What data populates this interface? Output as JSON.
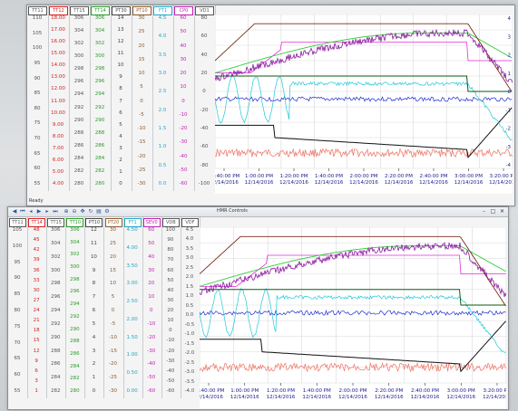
{
  "top_window": {
    "status": "Ready",
    "columns": [
      {
        "name": "TT11",
        "color": "#555555",
        "ticks": [
          "110",
          "105",
          "100",
          "95",
          "90",
          "85",
          "80",
          "75",
          "70",
          "65",
          "60",
          "55"
        ]
      },
      {
        "name": "TT12",
        "color": "#d42020",
        "ticks": [
          "18.00",
          "17.00",
          "16.00",
          "15.00",
          "14.00",
          "13.00",
          "12.00",
          "11.00",
          "10.00",
          "9.00",
          "8.00",
          "7.00",
          "6.00",
          "5.00",
          "4.00"
        ]
      },
      {
        "name": "TT15",
        "color": "#555555",
        "ticks": [
          "306",
          "304",
          "302",
          "300",
          "298",
          "296",
          "294",
          "292",
          "290",
          "288",
          "286",
          "284",
          "282",
          "280"
        ]
      },
      {
        "name": "TT14",
        "color": "#2a9a2a",
        "ticks": [
          "306",
          "304",
          "302",
          "300",
          "298",
          "296",
          "294",
          "292",
          "290",
          "288",
          "286",
          "284",
          "282",
          "280"
        ]
      },
      {
        "name": "PT30",
        "color": "#444444",
        "ticks": [
          "14",
          "13",
          "12",
          "11",
          "10",
          "9",
          "8",
          "7",
          "6",
          "5",
          "4",
          "3",
          "2",
          "1",
          "0"
        ]
      },
      {
        "name": "PT10",
        "color": "#8b5a2b",
        "ticks": [
          "30",
          "25",
          "20",
          "15",
          "10",
          "5",
          "0",
          "-5",
          "-10",
          "-15",
          "-20",
          "-25",
          "-30"
        ]
      },
      {
        "name": "FT1",
        "color": "#1fa7c7",
        "ticks": [
          "4.5",
          "4.0",
          "3.5",
          "3.0",
          "2.5",
          "2.0",
          "1.5",
          "1.0",
          "0.5",
          "0.0"
        ]
      },
      {
        "name": "CP0",
        "color": "#c21fb0",
        "ticks": [
          "60",
          "50",
          "40",
          "30",
          "20",
          "10",
          "0",
          "-10",
          "-20",
          "-30",
          "-40",
          "-50",
          "-60"
        ]
      },
      {
        "name": "VD1",
        "color": "#555555",
        "ticks": [
          "80",
          "60",
          "40",
          "20",
          "0",
          "-20",
          "-40",
          "-60",
          "-80",
          "-100"
        ]
      }
    ],
    "axis_times": [
      {
        "t": "12:40:00 PM",
        "d": "12/14/2016"
      },
      {
        "t": "1:00:00 PM",
        "d": "12/14/2016"
      },
      {
        "t": "1:20:00 PM",
        "d": "12/14/2016"
      },
      {
        "t": "1:40:00 PM",
        "d": "12/14/2016"
      },
      {
        "t": "2:00:00 PM",
        "d": "12/14/2016"
      },
      {
        "t": "2:20:00 PM",
        "d": "12/14/2016"
      },
      {
        "t": "2:40:00 PM",
        "d": "12/14/2016"
      },
      {
        "t": "3:00:00 PM",
        "d": "12/14/2016"
      },
      {
        "t": "3:20:00 PM",
        "d": "12/14/2016"
      }
    ],
    "right_scale": [
      "4",
      "3",
      "2",
      "1",
      "0",
      "-1",
      "-2",
      "-3",
      "-4"
    ]
  },
  "bottom_window": {
    "title": "HMR Controls",
    "columns": [
      {
        "name": "TT11",
        "color": "#555555",
        "ticks": [
          "105",
          "100",
          "95",
          "90",
          "85",
          "80",
          "75",
          "70",
          "65",
          "60",
          "55"
        ]
      },
      {
        "name": "TT14",
        "color": "#d42020",
        "ticks": [
          "48",
          "45",
          "42",
          "39",
          "36",
          "33",
          "30",
          "27",
          "24",
          "21",
          "18",
          "15",
          "12",
          "9",
          "6",
          "3",
          "1"
        ]
      },
      {
        "name": "TT15",
        "color": "#555555",
        "ticks": [
          "306",
          "304",
          "302",
          "300",
          "298",
          "296",
          "294",
          "292",
          "290",
          "288",
          "286",
          "284",
          "282"
        ]
      },
      {
        "name": "TT10",
        "color": "#2a9a2a",
        "ticks": [
          "306",
          "304",
          "302",
          "300",
          "298",
          "296",
          "294",
          "292",
          "290",
          "288",
          "286",
          "284",
          "282",
          "280"
        ]
      },
      {
        "name": "PT10",
        "color": "#444444",
        "ticks": [
          "12",
          "11",
          "10",
          "9",
          "8",
          "7",
          "6",
          "5",
          "4",
          "3",
          "2",
          "1",
          "0"
        ]
      },
      {
        "name": "PT20",
        "color": "#8b5a2b",
        "ticks": [
          "30",
          "25",
          "20",
          "15",
          "10",
          "5",
          "0",
          "-5",
          "-10",
          "-15",
          "-20",
          "-25",
          "-30"
        ]
      },
      {
        "name": "FT1",
        "color": "#1fa7c7",
        "ticks": [
          "4.50",
          "4.00",
          "3.50",
          "3.00",
          "2.50",
          "2.00",
          "1.50",
          "1.00",
          "0.50",
          "0.00"
        ]
      },
      {
        "name": "SEV0",
        "color": "#c21fb0",
        "ticks": [
          "60",
          "50",
          "40",
          "30",
          "20",
          "10",
          "0",
          "-10",
          "-20",
          "-30",
          "-40",
          "-50",
          "-60"
        ]
      },
      {
        "name": "VDB",
        "color": "#555555",
        "ticks": [
          "100",
          "90",
          "80",
          "70",
          "60",
          "50",
          "40",
          "30",
          "20",
          "10",
          "0",
          "-10",
          "-20",
          "-30",
          "-40",
          "-50",
          "-60"
        ]
      },
      {
        "name": "VDF",
        "color": "#555555",
        "ticks": [
          "4.5",
          "4.0",
          "3.5",
          "3.0",
          "2.5",
          "2.0",
          "1.5",
          "1.0",
          "0.5",
          "0.0",
          "-0.5",
          "-1.0",
          "-1.5",
          "-2.0",
          "-2.5",
          "-3.0",
          "-3.5",
          "-4.0"
        ]
      }
    ],
    "axis_times": [
      {
        "t": "12:40:00 PM",
        "d": "12/14/2016"
      },
      {
        "t": "1:00:00 PM",
        "d": "12/14/2016"
      },
      {
        "t": "1:20:00 PM",
        "d": "12/14/2016"
      },
      {
        "t": "1:40:00 PM",
        "d": "12/14/2016"
      },
      {
        "t": "2:00:00 PM",
        "d": "12/14/2016"
      },
      {
        "t": "2:20:00 PM",
        "d": "12/14/2016"
      },
      {
        "t": "2:40:00 PM",
        "d": "12/14/2016"
      },
      {
        "t": "3:00:00 PM",
        "d": "12/14/2016"
      },
      {
        "t": "3:20:00 PM",
        "d": "12/14/2016"
      }
    ],
    "toolbar_icons": [
      "back-icon",
      "first-icon",
      "prev-icon",
      "play-icon",
      "next-icon",
      "last-icon",
      "zoom-in-icon",
      "zoom-out-icon",
      "cursor-icon",
      "refresh-icon",
      "print-icon",
      "settings-icon"
    ]
  },
  "trace_colors": {
    "brown": "#7a2a1a",
    "green": "#2fce3a",
    "magenta": "#e030d8",
    "purple": "#8a1aa0",
    "darkgreen": "#0a5a12",
    "blue": "#1a2ad0",
    "cyan": "#20c8d8",
    "black": "#111111",
    "salmon": "#f07060"
  }
}
